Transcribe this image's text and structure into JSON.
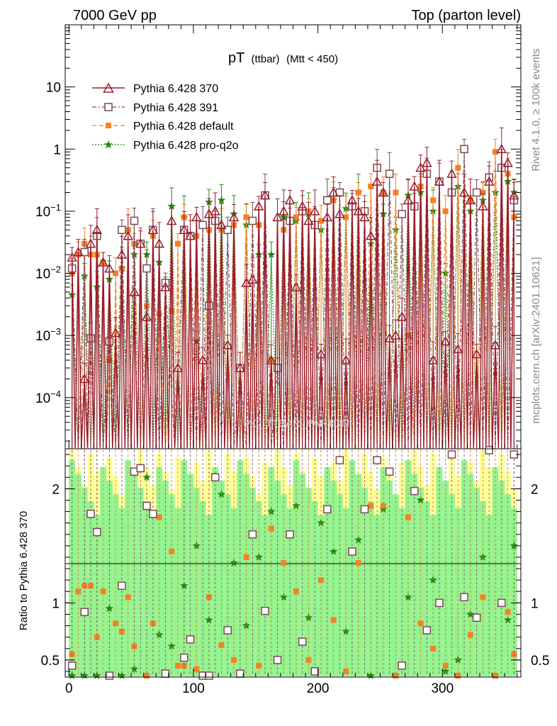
{
  "header": {
    "left": "7000 GeV pp",
    "right": "Top (parton level)"
  },
  "side_labels": {
    "rivet": "Rivet 4.1.0, ≥ 100k events",
    "mcplots": "mcplots.cern.ch [arXiv:2401.10621]"
  },
  "watermark": "MC_TTBAR_PARTON",
  "chart_data": {
    "type": "line",
    "title": "pT",
    "title_sub": "(ttbar)",
    "title_cut": "(Mtt < 450)",
    "xlim": [
      -3,
      363
    ],
    "ylim_main": [
      1.5e-05,
      100
    ],
    "yscale_main": "log",
    "ylim_ratio": [
      0.35,
      2.35
    ],
    "ylabel_ratio": "Ratio to Pythia 6.428 370",
    "x_ticks": [
      "0",
      "100",
      "200",
      "300"
    ],
    "y_ticks_main": [
      "10",
      "1",
      "10−1",
      "10−2",
      "10−3",
      "10−4"
    ],
    "y_ticks_ratio": [
      "2",
      "1",
      "0.5"
    ],
    "legend_position": "top-left",
    "bin_width": 5,
    "series": [
      {
        "name": "Pythia 6.428 370",
        "color": "#9b1c2c",
        "marker": "triangle-open",
        "x": [
          2.5,
          7.5,
          12.5,
          17.5,
          22.5,
          27.5,
          32.5,
          37.5,
          42.5,
          47.5,
          52.5,
          57.5,
          62.5,
          67.5,
          72.5,
          77.5,
          82.5,
          87.5,
          92.5,
          97.5,
          102.5,
          107.5,
          112.5,
          117.5,
          122.5,
          127.5,
          132.5,
          137.5,
          142.5,
          147.5,
          152.5,
          157.5,
          162.5,
          167.5,
          172.5,
          177.5,
          182.5,
          187.5,
          192.5,
          197.5,
          202.5,
          207.5,
          212.5,
          217.5,
          222.5,
          227.5,
          232.5,
          237.5,
          242.5,
          247.5,
          252.5,
          257.5,
          262.5,
          267.5,
          272.5,
          277.5,
          282.5,
          287.5,
          292.5,
          297.5,
          302.5,
          307.5,
          312.5,
          317.5,
          322.5,
          327.5,
          332.5,
          337.5,
          342.5,
          347.5,
          352.5,
          357.5
        ],
        "values": [
          0.018,
          0.022,
          0.0002,
          0.03,
          0.05,
          0.015,
          0.012,
          0.0011,
          0.02,
          0.04,
          0.005,
          0.03,
          0.002,
          0.05,
          0.03,
          0.006,
          0.07,
          0.0003,
          0.05,
          0.04,
          0.08,
          0.0004,
          0.09,
          0.1,
          0.06,
          0.0007,
          0.08,
          0.0003,
          0.007,
          0.008,
          0.12,
          0.18,
          0.0004,
          0.08,
          0.1,
          0.15,
          0.006,
          0.12,
          0.07,
          0.1,
          0.0005,
          0.08,
          0.2,
          0.09,
          0.0004,
          0.15,
          0.1,
          0.08,
          0.04,
          0.3,
          0.2,
          0.0009,
          0.001,
          0.002,
          0.15,
          0.25,
          0.5,
          0.6,
          0.0004,
          0.3,
          0.0008,
          0.4,
          0.0006,
          0.2,
          0.15,
          0.0005,
          0.12,
          0.3,
          0.0007,
          1.0,
          0.6,
          0.18
        ],
        "ratio": [
          1,
          1,
          1,
          1,
          1,
          1,
          1,
          1,
          1,
          1,
          1,
          1,
          1,
          1,
          1,
          1,
          1,
          1,
          1,
          1,
          1,
          1,
          1,
          1,
          1,
          1,
          1,
          1,
          1,
          1,
          1,
          1,
          1,
          1,
          1,
          1,
          1,
          1,
          1,
          1,
          1,
          1,
          1,
          1,
          1,
          1,
          1,
          1,
          1,
          1,
          1,
          1,
          1,
          1,
          1,
          1,
          1,
          1,
          1,
          1,
          1,
          1,
          1,
          1,
          1,
          1,
          1,
          1,
          1,
          1,
          1,
          1
        ]
      },
      {
        "name": "Pythia 6.428 391",
        "color": "#7a4a55",
        "marker": "square-open",
        "x": [
          2.5,
          12.5,
          17.5,
          22.5,
          32.5,
          42.5,
          52.5,
          57.5,
          62.5,
          67.5,
          77.5,
          92.5,
          97.5,
          107.5,
          112.5,
          117.5,
          127.5,
          137.5,
          147.5,
          157.5,
          167.5,
          177.5,
          187.5,
          197.5,
          207.5,
          217.5,
          227.5,
          237.5,
          247.5,
          257.5,
          267.5,
          277.5,
          287.5,
          297.5,
          307.5,
          317.5,
          327.5,
          337.5,
          347.5,
          357.5
        ],
        "values": [
          0.012,
          0.022,
          0.0009,
          0.04,
          0.0008,
          0.05,
          0.07,
          0.03,
          0.012,
          0.05,
          0.007,
          0.05,
          0.04,
          0.06,
          0.003,
          0.07,
          0.05,
          0.0003,
          0.07,
          0.18,
          0.0003,
          0.07,
          0.1,
          0.06,
          0.15,
          0.2,
          0.12,
          0.1,
          0.5,
          0.4,
          0.09,
          0.12,
          0.4,
          0.3,
          0.2,
          1.0,
          0.2,
          0.35,
          0.5,
          0.15
        ],
        "ratio": [
          0.45,
          0.92,
          1.78,
          1.62,
          0.3,
          1.15,
          2.15,
          2.18,
          1.85,
          1.78,
          0.38,
          0.52,
          0.68,
          0.3,
          0.33,
          2.1,
          0.76,
          0.38,
          1.6,
          0.93,
          0.5,
          1.6,
          0.66,
          0.4,
          1.82,
          2.25,
          1.45,
          1.82,
          2.25,
          2.15,
          0.45,
          1.98,
          0.76,
          1.0,
          2.3,
          1.05,
          0.87,
          2.4,
          1.0,
          2.3
        ]
      },
      {
        "name": "Pythia 6.428 default",
        "color": "#f58025",
        "marker": "square-filled",
        "x": [
          2.5,
          7.5,
          12.5,
          17.5,
          22.5,
          27.5,
          32.5,
          37.5,
          42.5,
          47.5,
          52.5,
          62.5,
          67.5,
          72.5,
          82.5,
          87.5,
          92.5,
          102.5,
          112.5,
          122.5,
          132.5,
          142.5,
          152.5,
          162.5,
          172.5,
          182.5,
          192.5,
          202.5,
          212.5,
          222.5,
          232.5,
          242.5,
          252.5,
          262.5,
          272.5,
          282.5,
          292.5,
          302.5,
          312.5,
          322.5,
          332.5,
          342.5,
          352.5,
          357.5
        ],
        "values": [
          0.01,
          0.02,
          0.03,
          0.02,
          0.02,
          0.015,
          0.0004,
          0.01,
          0.012,
          0.05,
          0.03,
          0.003,
          0.04,
          0.0022,
          0.0025,
          0.03,
          0.08,
          0.04,
          0.05,
          0.05,
          0.06,
          0.08,
          0.06,
          0.0004,
          0.05,
          0.08,
          0.1,
          0.07,
          0.15,
          0.08,
          0.2,
          0.25,
          0.2,
          0.2,
          0.001,
          0.25,
          0.15,
          0.1,
          0.5,
          0.15,
          0.2,
          0.9,
          0.4,
          0.08
        ],
        "ratio": [
          0.55,
          1.1,
          1.15,
          1.15,
          0.7,
          1.1,
          0.3,
          0.82,
          0.75,
          1.05,
          0.62,
          0.3,
          0.82,
          1.75,
          1.45,
          0.45,
          0.45,
          0.42,
          1.05,
          0.63,
          0.5,
          1.4,
          0.45,
          1.65,
          1.35,
          1.1,
          0.5,
          1.2,
          0.85,
          0.4,
          1.35,
          1.85,
          1.85,
          0.3,
          1.75,
          0.82,
          0.6,
          0.45,
          0.3,
          0.72,
          1.05,
          0.35,
          0.92,
          0.55
        ]
      },
      {
        "name": "Pythia 6.428 pro-q2o",
        "color": "#1f8a0a",
        "marker": "star",
        "x": [
          2.5,
          12.5,
          22.5,
          32.5,
          42.5,
          52.5,
          62.5,
          72.5,
          82.5,
          92.5,
          102.5,
          112.5,
          122.5,
          132.5,
          142.5,
          152.5,
          162.5,
          172.5,
          182.5,
          192.5,
          202.5,
          212.5,
          222.5,
          232.5,
          242.5,
          252.5,
          262.5,
          272.5,
          282.5,
          292.5,
          302.5,
          312.5,
          322.5,
          332.5,
          342.5,
          352.5,
          357.5
        ],
        "values": [
          0.0045,
          0.009,
          0.006,
          0.008,
          0.012,
          0.02,
          0.02,
          0.015,
          0.12,
          0.08,
          0.0008,
          0.14,
          0.15,
          0.09,
          0.06,
          0.02,
          0.02,
          0.08,
          0.07,
          0.09,
          0.05,
          0.15,
          0.11,
          0.2,
          0.03,
          0.09,
          0.05,
          0.18,
          0.2,
          0.1,
          0.01,
          0.25,
          0.1,
          0.15,
          0.2,
          0.3,
          0.2
        ],
        "ratio": [
          0.3,
          0.25,
          0.2,
          0.95,
          0.35,
          0.42,
          2.1,
          0.72,
          0.62,
          1.15,
          1.5,
          0.85,
          1.95,
          1.35,
          0.8,
          1.4,
          1.8,
          1.05,
          1.85,
          0.87,
          1.7,
          1.45,
          0.75,
          1.55,
          0.33,
          1.82,
          0.22,
          1.05,
          1.9,
          1.2,
          0.4,
          0.5,
          0.9,
          1.4,
          0.25,
          0.85,
          1.5
        ]
      }
    ]
  }
}
